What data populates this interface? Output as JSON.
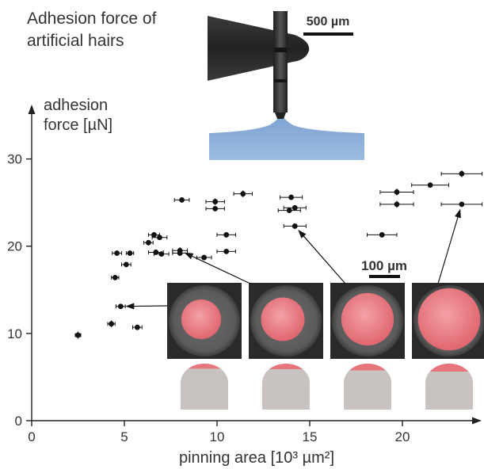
{
  "title_lines": [
    "Adhesion force of",
    "artificial hairs"
  ],
  "chart_data": {
    "type": "scatter",
    "title": "Adhesion force of artificial hairs",
    "xlabel": "pinning area [10³ µm²]",
    "ylabel_lines": [
      "adhesion",
      "force [µN]"
    ],
    "xlim": [
      0,
      24.5
    ],
    "ylim": [
      0,
      31
    ],
    "xticks": [
      0,
      5,
      10,
      15,
      20
    ],
    "yticks": [
      0,
      10,
      20,
      30
    ],
    "grid": false,
    "points": [
      {
        "x": 2.5,
        "y": 9.8,
        "xerr": 0.15,
        "yerr": 0.4
      },
      {
        "x": 4.3,
        "y": 11.1,
        "xerr": 0.2,
        "yerr": 0.4
      },
      {
        "x": 5.7,
        "y": 10.7,
        "xerr": 0.25,
        "yerr": 0.3
      },
      {
        "x": 4.8,
        "y": 13.1,
        "xerr": 0.25,
        "yerr": 0.2
      },
      {
        "x": 4.5,
        "y": 16.4,
        "xerr": 0.2,
        "yerr": 0.3
      },
      {
        "x": 5.1,
        "y": 17.9,
        "xerr": 0.25,
        "yerr": 0.3
      },
      {
        "x": 4.6,
        "y": 19.2,
        "xerr": 0.25,
        "yerr": 0.2
      },
      {
        "x": 5.3,
        "y": 19.2,
        "xerr": 0.2,
        "yerr": 0.2
      },
      {
        "x": 6.3,
        "y": 20.4,
        "xerr": 0.25,
        "yerr": 0.3
      },
      {
        "x": 6.6,
        "y": 21.3,
        "xerr": 0.3,
        "yerr": 0.3
      },
      {
        "x": 6.9,
        "y": 21.0,
        "xerr": 0.4,
        "yerr": 0.3
      },
      {
        "x": 6.7,
        "y": 19.3,
        "xerr": 0.4,
        "yerr": 0.2
      },
      {
        "x": 7.0,
        "y": 19.1,
        "xerr": 0.4,
        "yerr": 0.2
      },
      {
        "x": 8.0,
        "y": 19.5,
        "xerr": 0.4,
        "yerr": 0.4
      },
      {
        "x": 8.0,
        "y": 19.2,
        "xerr": 0.4,
        "yerr": 0.2
      },
      {
        "x": 9.3,
        "y": 18.7,
        "xerr": 0.4,
        "yerr": 0.3
      },
      {
        "x": 8.1,
        "y": 25.3,
        "xerr": 0.4,
        "yerr": 0.3
      },
      {
        "x": 9.9,
        "y": 25.1,
        "xerr": 0.5,
        "yerr": 0.4
      },
      {
        "x": 9.9,
        "y": 24.3,
        "xerr": 0.5,
        "yerr": 0.3
      },
      {
        "x": 11.4,
        "y": 26.0,
        "xerr": 0.5,
        "yerr": 0.4
      },
      {
        "x": 10.5,
        "y": 21.3,
        "xerr": 0.5,
        "yerr": 0.3
      },
      {
        "x": 10.5,
        "y": 19.4,
        "xerr": 0.5,
        "yerr": 0.3
      },
      {
        "x": 14.0,
        "y": 25.6,
        "xerr": 0.6,
        "yerr": 0.3
      },
      {
        "x": 14.2,
        "y": 24.4,
        "xerr": 0.6,
        "yerr": 0.3
      },
      {
        "x": 13.9,
        "y": 24.1,
        "xerr": 0.6,
        "yerr": 0.3
      },
      {
        "x": 14.2,
        "y": 22.3,
        "xerr": 0.6,
        "yerr": 0.3
      },
      {
        "x": 19.7,
        "y": 26.2,
        "xerr": 0.9,
        "yerr": 0.4
      },
      {
        "x": 19.7,
        "y": 24.8,
        "xerr": 0.9,
        "yerr": 0.4
      },
      {
        "x": 18.9,
        "y": 21.3,
        "xerr": 0.8,
        "yerr": 0.3
      },
      {
        "x": 21.5,
        "y": 27.0,
        "xerr": 1.0,
        "yerr": 0.3
      },
      {
        "x": 23.2,
        "y": 28.3,
        "xerr": 1.1,
        "yerr": 0.4
      },
      {
        "x": 23.2,
        "y": 24.8,
        "xerr": 1.1,
        "yerr": 0.3
      }
    ],
    "annotations": {
      "inset_scale_bar": "500 µm",
      "micrograph_scale_bar": "100 µm"
    },
    "micrographs": [
      {
        "pointer_x": 4.8,
        "pointer_y": 13.1,
        "contact_fraction": 0.42
      },
      {
        "pointer_x": 8.0,
        "pointer_y": 19.5,
        "contact_fraction": 0.5
      },
      {
        "pointer_x": 14.2,
        "pointer_y": 22.3,
        "contact_fraction": 0.68
      },
      {
        "pointer_x": 23.2,
        "pointer_y": 24.8,
        "contact_fraction": 0.88
      }
    ],
    "colors": {
      "points": "#111111",
      "contact": "#e8747c",
      "hair": "#c8c2c0",
      "liquid": "#8fb0d8",
      "micrograph_bg": "#4a4a4a"
    }
  }
}
